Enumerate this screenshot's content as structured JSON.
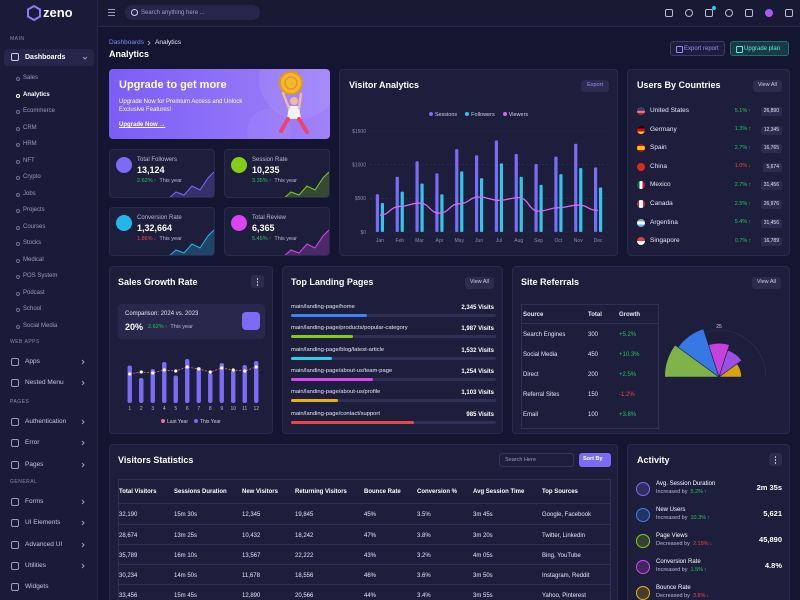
{
  "sidebar": {
    "logo": "zeno",
    "main_label": "MAIN",
    "dashboards": "Dashboards",
    "dashboard_items": [
      "Sales",
      "Analytics",
      "Ecommerce",
      "CRM",
      "HRM",
      "NFT",
      "Crypto",
      "Jobs",
      "Projects",
      "Courses",
      "Stocks",
      "Medical",
      "POS System",
      "Podcast",
      "School",
      "Social Media"
    ],
    "groups": [
      {
        "label": "WEB APPS",
        "items": [
          "Apps",
          "Nested Menu"
        ]
      },
      {
        "label": "PAGES",
        "items": [
          "Authentication",
          "Error",
          "Pages"
        ]
      },
      {
        "label": "GENERAL",
        "items": [
          "Forms",
          "UI Elements",
          "Advanced UI",
          "Utilities",
          "Widgets"
        ]
      }
    ]
  },
  "topbar": {
    "search_placeholder": "Search anything here ..."
  },
  "header": {
    "breadcrumb": [
      "Dashboards",
      "Analytics"
    ],
    "title": "Analytics",
    "buttons": [
      "Export report",
      "Upgrade plan"
    ]
  },
  "upgrade": {
    "title": "Upgrade to get more",
    "text": "Upgrade Now for Premium Access and Unlock Exclusive Features!",
    "link": "Upgrade Now →"
  },
  "stats": [
    {
      "label": "Total Followers",
      "value": "13,124",
      "change": "2.62%",
      "arrow": "↑",
      "period": "This year"
    },
    {
      "label": "Session Rate",
      "value": "10,235",
      "change": "3.35%",
      "arrow": "↑",
      "period": "This year"
    },
    {
      "label": "Conversion Rate",
      "value": "1,32,664",
      "change": "1.86%",
      "arrow": "↓",
      "period": "This year"
    },
    {
      "label": "Total Review",
      "value": "6,365",
      "change": "5.45%",
      "arrow": "↑",
      "period": "This year"
    }
  ],
  "chart_data": [
    {
      "type": "bar-line",
      "title": "Visitor Analytics",
      "button": "Export",
      "categories": [
        "Jan",
        "Feb",
        "Mar",
        "Apr",
        "May",
        "Jun",
        "Jul",
        "Aug",
        "Sep",
        "Oct",
        "Nov",
        "Dec"
      ],
      "series": [
        {
          "name": "Sessions",
          "color": "#7b6cf6",
          "kind": "bar",
          "values": [
            560,
            820,
            1050,
            870,
            1230,
            1140,
            1360,
            1160,
            1010,
            1120,
            1310,
            960
          ]
        },
        {
          "name": "Followers",
          "color": "#2fc6e8",
          "kind": "bar",
          "values": [
            430,
            600,
            720,
            560,
            900,
            800,
            1020,
            820,
            700,
            860,
            950,
            660
          ]
        },
        {
          "name": "Viewers",
          "color": "#d36cf2",
          "kind": "line",
          "values": [
            250,
            380,
            430,
            280,
            420,
            520,
            470,
            510,
            310,
            360,
            400,
            320
          ]
        }
      ],
      "ylim": [
        0,
        1500
      ],
      "yticks": [
        {
          "value": 0,
          "label": "$0"
        },
        {
          "value": 500,
          "label": "$500"
        },
        {
          "value": 1000,
          "label": "$1000"
        },
        {
          "value": 1500,
          "label": "$1500"
        }
      ],
      "grid": true
    },
    {
      "type": "bar-line",
      "title": "Sales Growth Rate",
      "comparison": "Comparison: 2024 vs. 2023",
      "big_value": "20%",
      "change": "2.62%",
      "arrow": "↑",
      "period": "This year",
      "categories": [
        "1",
        "2",
        "3",
        "4",
        "5",
        "6",
        "7",
        "8",
        "9",
        "10",
        "11",
        "12"
      ],
      "series": [
        {
          "name": "Last Year",
          "color": "#f46a9b",
          "kind": "line",
          "values": [
            58,
            62,
            60,
            66,
            64,
            72,
            68,
            62,
            70,
            66,
            64,
            72
          ]
        },
        {
          "name": "This Year",
          "color": "#7b6cf6",
          "kind": "bar",
          "values": [
            75,
            50,
            68,
            82,
            55,
            88,
            72,
            60,
            80,
            66,
            76,
            84
          ]
        }
      ],
      "ylim": [
        0,
        100
      ]
    },
    {
      "type": "polar",
      "values": [
        29,
        27,
        18,
        15,
        12
      ],
      "colors": [
        "#8bc34a",
        "#3b82f6",
        "#d946ef",
        "#a855f7",
        "#eab308"
      ],
      "rlim": [
        0,
        32
      ],
      "rticks": [
        25
      ]
    }
  ],
  "countries": {
    "title": "Users By Countries",
    "button": "View All",
    "rows": [
      {
        "name": "United States",
        "change": "5.1%",
        "arrow": "↑",
        "value": "26,890"
      },
      {
        "name": "Germany",
        "change": "1.3%",
        "arrow": "↑",
        "value": "12,345"
      },
      {
        "name": "Spain",
        "change": "2.7%",
        "arrow": "↑",
        "value": "16,765"
      },
      {
        "name": "China",
        "change": "1.0%",
        "arrow": "↓",
        "value": "5,674"
      },
      {
        "name": "Mexico",
        "change": "2.7%",
        "arrow": "↑",
        "value": "31,456"
      },
      {
        "name": "Canada",
        "change": "2.5%",
        "arrow": "↑",
        "value": "26,976"
      },
      {
        "name": "Argentina",
        "change": "5.4%",
        "arrow": "↑",
        "value": "31,456"
      },
      {
        "name": "Singapore",
        "change": "0.7%",
        "arrow": "↑",
        "value": "16,789"
      }
    ]
  },
  "landing_pages": {
    "title": "Top Landing Pages",
    "button": "View All",
    "rows": [
      {
        "url": "main/landing-page/home",
        "visits": "2,345 Visits",
        "progress": 37,
        "color": "#3b82f6"
      },
      {
        "url": "main/landing-page/products/popular-category",
        "visits": "1,987 Visits",
        "progress": 30,
        "color": "#84cc16"
      },
      {
        "url": "main/landing-page/blog/latest-article",
        "visits": "1,532 Visits",
        "progress": 20,
        "color": "#22d3ee"
      },
      {
        "url": "main/landing-page/about-us/team-page",
        "visits": "1,254 Visits",
        "progress": 40,
        "color": "#d946ef"
      },
      {
        "url": "main/landing-page/about-us/profile",
        "visits": "1,103 Visits",
        "progress": 23,
        "color": "#eab308"
      },
      {
        "url": "main/landing-page/contact/support",
        "visits": "985 Visits",
        "progress": 60,
        "color": "#ef4444"
      }
    ]
  },
  "referrals": {
    "title": "Site Referrals",
    "button": "View All",
    "columns": [
      "Source",
      "Total",
      "Growth"
    ],
    "rows": [
      [
        "Search Engines",
        "300",
        "+5.2%"
      ],
      [
        "Social Media",
        "450",
        "+10.3%"
      ],
      [
        "Direct",
        "200",
        "+2.5%"
      ],
      [
        "Referral Sites",
        "150",
        "-1.2%"
      ],
      [
        "Email",
        "100",
        "+3.8%"
      ]
    ]
  },
  "visitors": {
    "title": "Visitors Statistics",
    "search_placeholder": "Search Here",
    "sort": "Sort By",
    "columns": [
      "Total Visitors",
      "Sessions Duration",
      "New Visitors",
      "Returning Visitors",
      "Bounce Rate",
      "Conversion %",
      "Avg Session Time",
      "Top Sources"
    ],
    "rows": [
      [
        "32,190",
        "15m 30s",
        "12,345",
        "19,845",
        "45%",
        "3.5%",
        "3m 45s",
        "Google, Facebook"
      ],
      [
        "28,674",
        "13m 25s",
        "10,432",
        "18,242",
        "47%",
        "3.8%",
        "3m 20s",
        "Twitter, Linkedin"
      ],
      [
        "35,789",
        "16m 10s",
        "13,567",
        "22,222",
        "43%",
        "3.2%",
        "4m 05s",
        "Bing, YouTube"
      ],
      [
        "30,234",
        "14m 50s",
        "11,678",
        "18,556",
        "46%",
        "3.6%",
        "3m 50s",
        "Instagram, Reddit"
      ],
      [
        "33,456",
        "15m 45s",
        "12,890",
        "20,566",
        "44%",
        "3.4%",
        "3m 55s",
        "Yahoo, Pinterest"
      ]
    ]
  },
  "activity": {
    "title": "Activity",
    "items": [
      {
        "label": "Avg. Session Duration",
        "trend": "Increased by",
        "change": "5.2%",
        "arrow": "↑",
        "value": "2m 35s"
      },
      {
        "label": "New Users",
        "trend": "Increased by",
        "change": "10.3%",
        "arrow": "↑",
        "value": "5,621"
      },
      {
        "label": "Page Views",
        "trend": "Decreased by",
        "change": "2.15%",
        "arrow": "↓",
        "value": "45,890"
      },
      {
        "label": "Conversion Rate",
        "trend": "Increased by",
        "change": "1.5%",
        "arrow": "↑",
        "value": "4.8%"
      },
      {
        "label": "Bounce Rate",
        "trend": "Decreased by",
        "change": "3.8%",
        "arrow": "↓"
      }
    ]
  }
}
